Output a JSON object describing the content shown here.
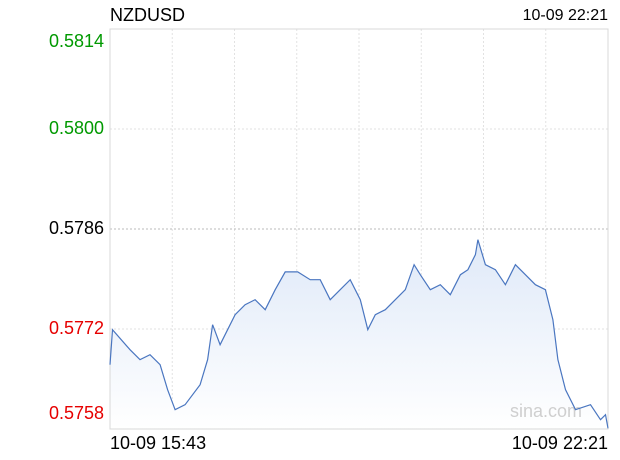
{
  "chart_data": {
    "type": "line",
    "title": "NZDUSD",
    "timestamp": "10-09 22:21",
    "watermark": "sina.com",
    "x": [
      0,
      2,
      16,
      24,
      32,
      40,
      46,
      52,
      60,
      72,
      78,
      82,
      88,
      94,
      100,
      108,
      116,
      124,
      132,
      140,
      150,
      160,
      168,
      176,
      184,
      192,
      200,
      206,
      212,
      220,
      228,
      236,
      243,
      248,
      256,
      264,
      272,
      280,
      286,
      292,
      294,
      300,
      308,
      316,
      324,
      332,
      340,
      348,
      354,
      358,
      364,
      372,
      384,
      392,
      396,
      398
    ],
    "series": [
      {
        "name": "NZDUSD",
        "color": "#4a76c0",
        "values": [
          0.5767,
          0.57719,
          0.57691,
          0.57677,
          0.57684,
          0.5767,
          0.57635,
          0.57607,
          0.57614,
          0.57642,
          0.57677,
          0.57726,
          0.57698,
          0.57719,
          0.5774,
          0.57754,
          0.57761,
          0.57747,
          0.57775,
          0.578,
          0.578,
          0.57789,
          0.57789,
          0.57761,
          0.57775,
          0.57789,
          0.57761,
          0.57719,
          0.5774,
          0.57747,
          0.57761,
          0.57775,
          0.5781,
          0.57796,
          0.57775,
          0.57782,
          0.57768,
          0.57796,
          0.57803,
          0.57824,
          0.57845,
          0.5781,
          0.57803,
          0.57782,
          0.5781,
          0.57796,
          0.57782,
          0.57775,
          0.57733,
          0.57677,
          0.57635,
          0.57607,
          0.57614,
          0.57593,
          0.576,
          0.57581
        ]
      }
    ],
    "xlim": [
      0,
      398
    ],
    "xticks": [
      {
        "value": 0,
        "label": "10-09 15:43"
      },
      {
        "value": 398,
        "label": "10-09 22:21"
      }
    ],
    "ylim": [
      0.5758,
      0.5814
    ],
    "yticks": [
      {
        "value": 0.5758,
        "label": "0.5758",
        "color": "#e60000"
      },
      {
        "value": 0.5772,
        "label": "0.5772",
        "color": "#e60000"
      },
      {
        "value": 0.5786,
        "label": "0.5786",
        "color": "#000000"
      },
      {
        "value": 0.58,
        "label": "0.5800",
        "color": "#009900"
      },
      {
        "value": 0.5814,
        "label": "0.5814",
        "color": "#009900"
      }
    ],
    "grid": true
  }
}
